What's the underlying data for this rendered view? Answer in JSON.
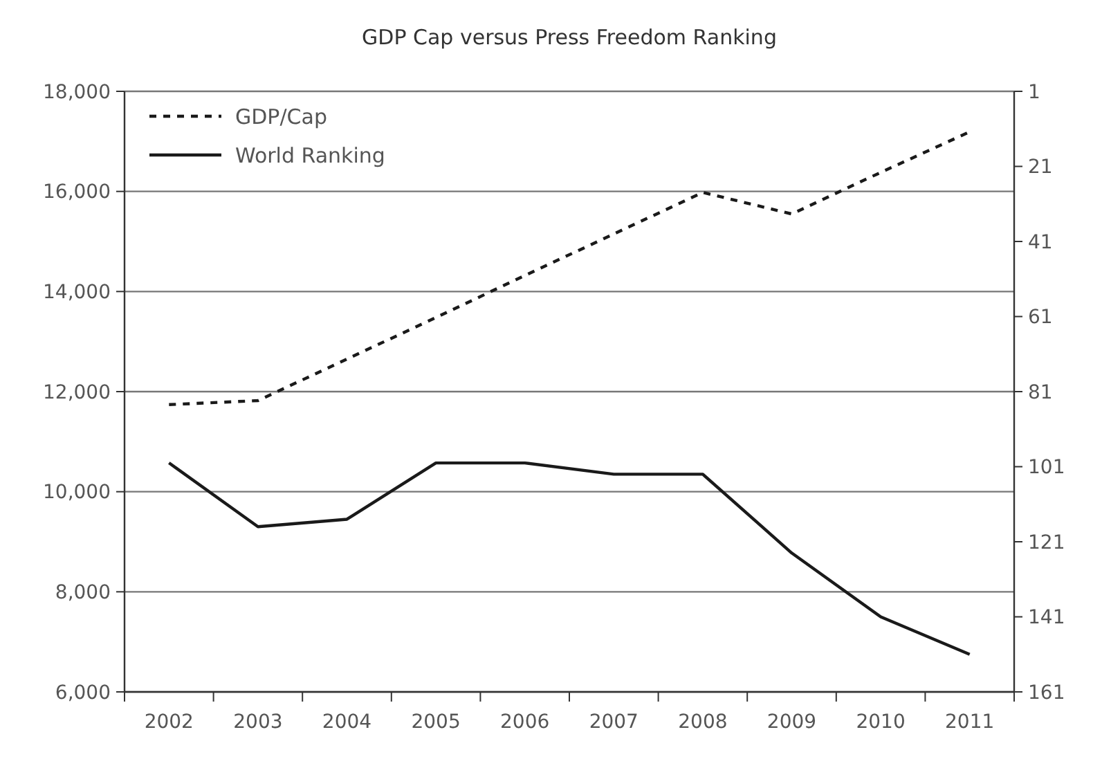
{
  "chart_data": {
    "type": "line",
    "title": "GDP Cap versus Press Freedom Ranking",
    "categories": [
      "2002",
      "2003",
      "2004",
      "2005",
      "2006",
      "2007",
      "2008",
      "2009",
      "2010",
      "2011"
    ],
    "series": [
      {
        "name": "GDP/Cap",
        "color": "#1a1a1a",
        "line_style": "dashed",
        "values": [
          11740,
          11820,
          12650,
          13480,
          14320,
          15150,
          15980,
          15550,
          16380,
          17190
        ]
      },
      {
        "name": "World Ranking",
        "color": "#1a1a1a",
        "line_style": "solid",
        "axis": "y2",
        "values": [
          100,
          117,
          115,
          100,
          100,
          103,
          103,
          124,
          141,
          151
        ]
      }
    ],
    "ylim": [
      6000,
      18000
    ],
    "yticks": [
      {
        "value": 6000,
        "label": "6,000"
      },
      {
        "value": 8000,
        "label": "8,000"
      },
      {
        "value": 10000,
        "label": "10,000"
      },
      {
        "value": 12000,
        "label": "12,000"
      },
      {
        "value": 14000,
        "label": "14,000"
      },
      {
        "value": 16000,
        "label": "16,000"
      },
      {
        "value": 18000,
        "label": "18,000"
      }
    ],
    "y2lim": [
      161,
      1
    ],
    "y2ticks": [
      1,
      21,
      41,
      61,
      81,
      101,
      121,
      141,
      161
    ],
    "grid": "y",
    "legend": "top left",
    "marker": "none"
  }
}
